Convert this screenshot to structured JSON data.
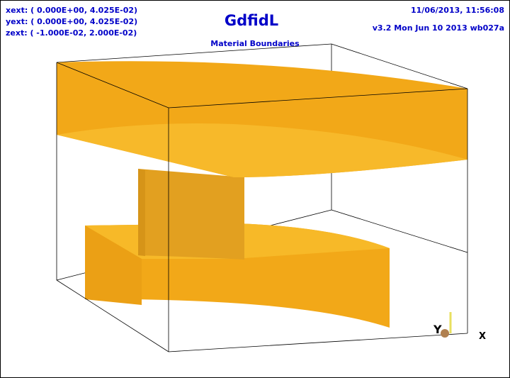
{
  "header": {
    "extents": [
      "xext: (  0.000E+00,  4.025E-02)",
      "yext: (  0.000E+00,  4.025E-02)",
      "zext: ( -1.000E-02,  2.000E-02)"
    ],
    "title": "GdfidL",
    "subtitle": "Material Boundaries",
    "timestamp": "11/06/2013, 11:56:08",
    "version": "v3.2 Mon Jun 10 2013 wb027a"
  },
  "axes_icon": {
    "y_label": "Y",
    "x_label": "X"
  }
}
